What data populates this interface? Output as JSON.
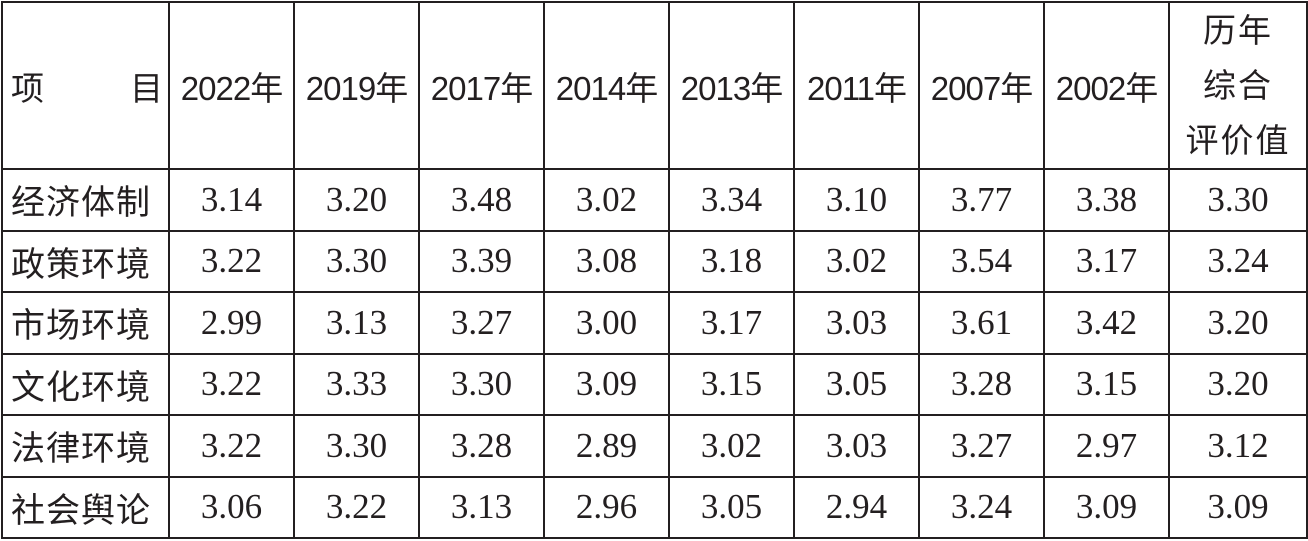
{
  "table": {
    "header": {
      "item_label_left": "项",
      "item_label_right": "目",
      "years": [
        "2022年",
        "2019年",
        "2017年",
        "2014年",
        "2013年",
        "2011年",
        "2007年",
        "2002年"
      ],
      "summary_lines": [
        "历年",
        "综合",
        "评价值"
      ]
    },
    "rows": [
      {
        "label": "经济体制",
        "values": [
          "3.14",
          "3.20",
          "3.48",
          "3.02",
          "3.34",
          "3.10",
          "3.77",
          "3.38",
          "3.30"
        ]
      },
      {
        "label": "政策环境",
        "values": [
          "3.22",
          "3.30",
          "3.39",
          "3.08",
          "3.18",
          "3.02",
          "3.54",
          "3.17",
          "3.24"
        ]
      },
      {
        "label": "市场环境",
        "values": [
          "2.99",
          "3.13",
          "3.27",
          "3.00",
          "3.17",
          "3.03",
          "3.61",
          "3.42",
          "3.20"
        ]
      },
      {
        "label": "文化环境",
        "values": [
          "3.22",
          "3.33",
          "3.30",
          "3.09",
          "3.15",
          "3.05",
          "3.28",
          "3.15",
          "3.20"
        ]
      },
      {
        "label": "法律环境",
        "values": [
          "3.22",
          "3.30",
          "3.28",
          "2.89",
          "3.02",
          "3.03",
          "3.27",
          "2.97",
          "3.12"
        ]
      },
      {
        "label": "社会舆论",
        "values": [
          "3.06",
          "3.22",
          "3.13",
          "2.96",
          "3.05",
          "2.94",
          "3.24",
          "3.09",
          "3.09"
        ]
      }
    ]
  }
}
